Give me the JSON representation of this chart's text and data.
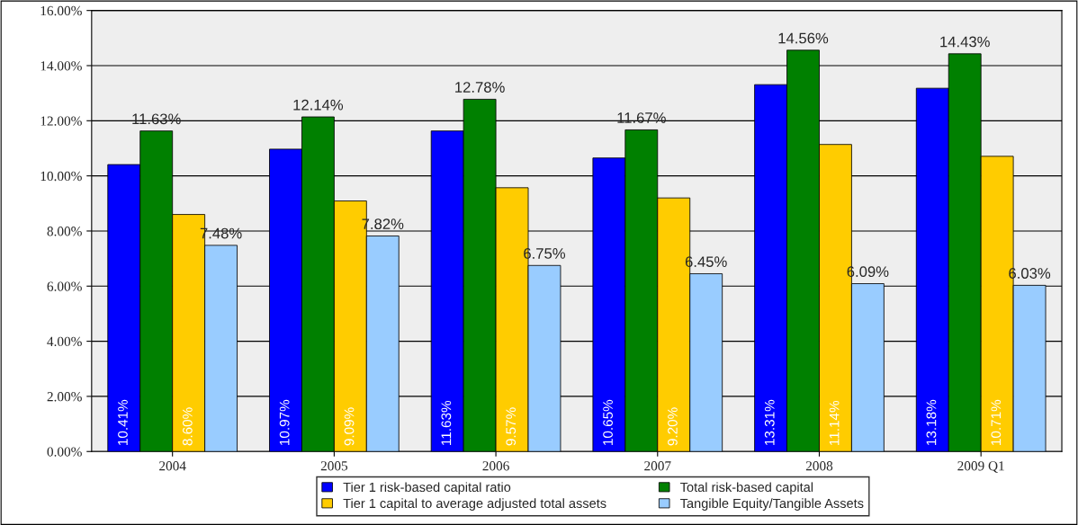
{
  "chart_data": {
    "type": "bar",
    "categories": [
      "2004",
      "2005",
      "2006",
      "2007",
      "2008",
      "2009 Q1"
    ],
    "series": [
      {
        "name": "Tier 1 risk-based capital ratio",
        "color": "#0000ff",
        "values": [
          10.41,
          10.97,
          11.63,
          10.65,
          13.31,
          13.18
        ],
        "value_labels": [
          "10.41%",
          "10.97%",
          "11.63%",
          "10.65%",
          "13.31%",
          "13.18%"
        ]
      },
      {
        "name": "Total risk-based capital",
        "color": "#008000",
        "values": [
          11.63,
          12.14,
          12.78,
          11.67,
          14.56,
          14.43
        ],
        "value_labels": [
          "11.63%",
          "12.14%",
          "12.78%",
          "11.67%",
          "14.56%",
          "14.43%"
        ]
      },
      {
        "name": "Tier 1 capital to average adjusted total assets",
        "color": "#ffcc00",
        "values": [
          8.6,
          9.09,
          9.57,
          9.2,
          11.14,
          10.71
        ],
        "value_labels": [
          "8.60%",
          "9.09%",
          "9.57%",
          "9.20%",
          "11.14%",
          "10.71%"
        ]
      },
      {
        "name": "Tangible Equity/Tangible Assets",
        "color": "#99ccff",
        "values": [
          7.48,
          7.82,
          6.75,
          6.45,
          6.09,
          6.03
        ],
        "value_labels": [
          "7.48%",
          "7.82%",
          "6.75%",
          "6.45%",
          "6.09%",
          "6.03%"
        ]
      }
    ],
    "ylim": [
      0,
      16
    ],
    "yticks": [
      {
        "value": 0,
        "label": "0.00%"
      },
      {
        "value": 2,
        "label": "2.00%"
      },
      {
        "value": 4,
        "label": "4.00%"
      },
      {
        "value": 6,
        "label": "6.00%"
      },
      {
        "value": 8,
        "label": "8.00%"
      },
      {
        "value": 10,
        "label": "10.00%"
      },
      {
        "value": 12,
        "label": "12.00%"
      },
      {
        "value": 14,
        "label": "14.00%"
      },
      {
        "value": 16,
        "label": "16.00%"
      }
    ],
    "grid": "y",
    "legend": "bottom"
  }
}
